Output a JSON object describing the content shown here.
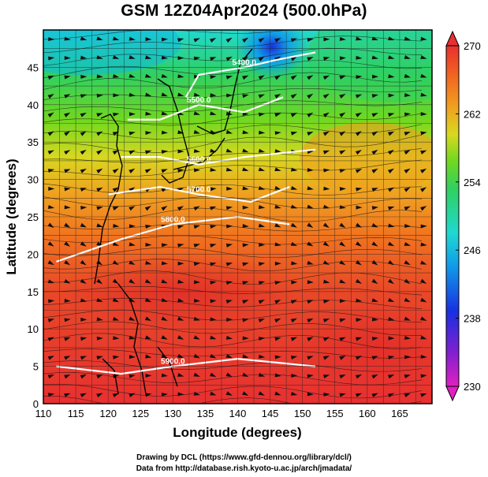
{
  "title": "GSM 12Z04Apr2024 (500.0hPa)",
  "xlabel": "Longitude (degrees)",
  "ylabel": "Latitude (degrees)",
  "credits": [
    "Drawing by DCL (https://www.gfd-dennou.org/library/dcl/)",
    "Data from http://database.rish.kyoto-u.ac.jp/arch/jmadata/"
  ],
  "chart_data": {
    "type": "heatmap",
    "xlim": [
      110,
      170
    ],
    "ylim": [
      0,
      50
    ],
    "x_ticks": [
      110,
      115,
      120,
      125,
      130,
      135,
      140,
      145,
      150,
      155,
      160,
      165
    ],
    "y_ticks": [
      0,
      5,
      10,
      15,
      20,
      25,
      30,
      35,
      40,
      45
    ],
    "grid": true,
    "colorbar": {
      "range": [
        230,
        270
      ],
      "ticks": [
        230,
        238,
        246,
        254,
        262,
        270
      ],
      "colors": [
        "#e020c0",
        "#8020d0",
        "#1830e0",
        "#10a0e8",
        "#20d8d0",
        "#30d060",
        "#70d820",
        "#d8d820",
        "#f0a020",
        "#f06020",
        "#e83030"
      ]
    },
    "contours": [
      {
        "label": "5400.0",
        "points": [
          [
            132,
            41
          ],
          [
            134,
            44
          ],
          [
            141,
            45
          ],
          [
            146,
            46
          ],
          [
            152,
            47
          ]
        ]
      },
      {
        "label": "5500.0",
        "points": [
          [
            123,
            38
          ],
          [
            128,
            38
          ],
          [
            134,
            40
          ],
          [
            141,
            39
          ],
          [
            147,
            41
          ]
        ]
      },
      {
        "label": "5600.0",
        "points": [
          [
            122,
            33
          ],
          [
            128,
            33
          ],
          [
            134,
            32
          ],
          [
            141,
            33
          ],
          [
            152,
            34
          ]
        ]
      },
      {
        "label": "5700.0",
        "points": [
          [
            120,
            28
          ],
          [
            128,
            29
          ],
          [
            134,
            28
          ],
          [
            142,
            27
          ],
          [
            148,
            29
          ]
        ]
      },
      {
        "label": "5800.0",
        "points": [
          [
            112,
            19
          ],
          [
            122,
            22
          ],
          [
            130,
            24
          ],
          [
            140,
            25
          ],
          [
            148,
            24
          ]
        ]
      },
      {
        "label": "5900.0",
        "points": [
          [
            112,
            5
          ],
          [
            122,
            4
          ],
          [
            130,
            5
          ],
          [
            140,
            6
          ],
          [
            152,
            5
          ]
        ]
      }
    ]
  }
}
